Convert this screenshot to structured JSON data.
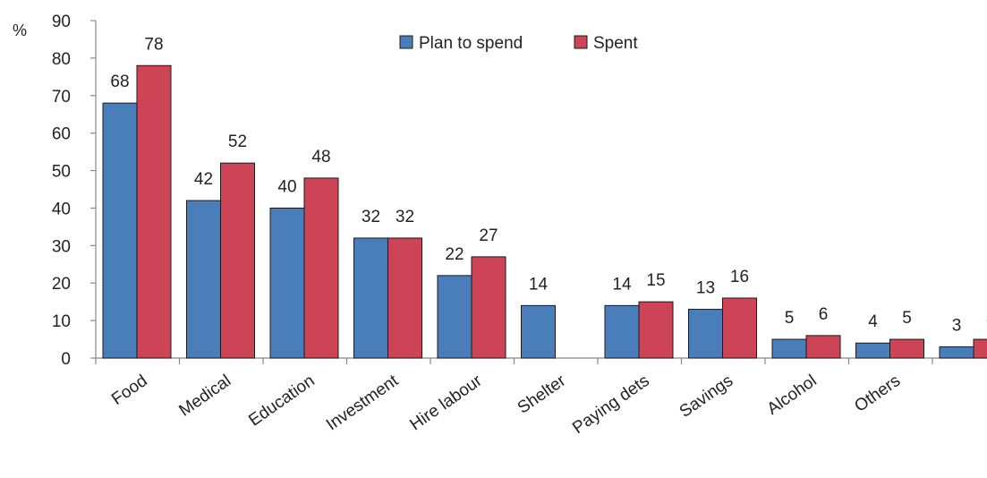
{
  "chart_data": {
    "type": "bar",
    "y_unit_label": "%",
    "categories": [
      "Food",
      "Medical",
      "Education",
      "Investment",
      "Hire labour",
      "Shelter",
      "Paying dets",
      "Savings",
      "Alcohol",
      "Others",
      ""
    ],
    "series": [
      {
        "name": "Plan to spend",
        "color": "#4a7ebb",
        "values": [
          68,
          42,
          40,
          32,
          22,
          14,
          14,
          13,
          5,
          4,
          3
        ]
      },
      {
        "name": "Spent",
        "color": "#cc4455",
        "values": [
          78,
          52,
          48,
          32,
          27,
          null,
          15,
          16,
          6,
          5,
          5
        ]
      }
    ],
    "ylim": [
      0,
      90
    ],
    "yticks": [
      0,
      10,
      20,
      30,
      40,
      50,
      60,
      70,
      80,
      90
    ],
    "grid": false,
    "legend_position": "top-center"
  }
}
